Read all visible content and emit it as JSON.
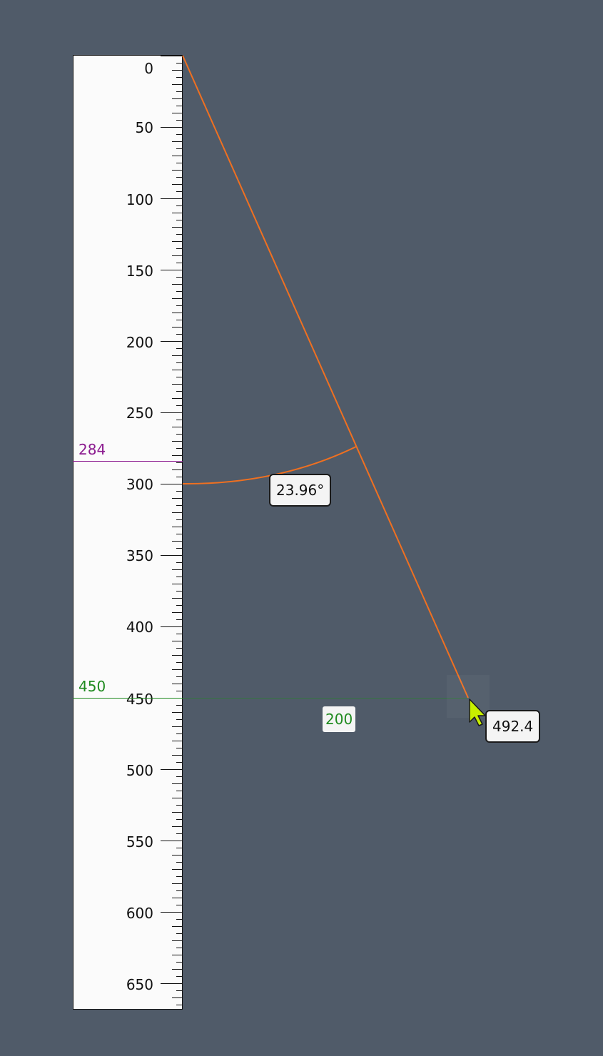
{
  "ruler": {
    "labels": [
      "0",
      "50",
      "100",
      "150",
      "200",
      "250",
      "300",
      "350",
      "400",
      "450",
      "500",
      "550",
      "600",
      "650"
    ]
  },
  "guides": {
    "purple": {
      "label": "284",
      "color": "#8b1a8f"
    },
    "green": {
      "label": "450",
      "color": "#1f8a1f"
    }
  },
  "measurement": {
    "angle_label": "23.96°",
    "length_label": "492.4",
    "horizontal_label": "200",
    "line_color": "#f07020",
    "horizontal_color": "#1f8a1f"
  },
  "cursor": {
    "icon": "arrow-cursor-icon",
    "color": "#c8f000"
  }
}
